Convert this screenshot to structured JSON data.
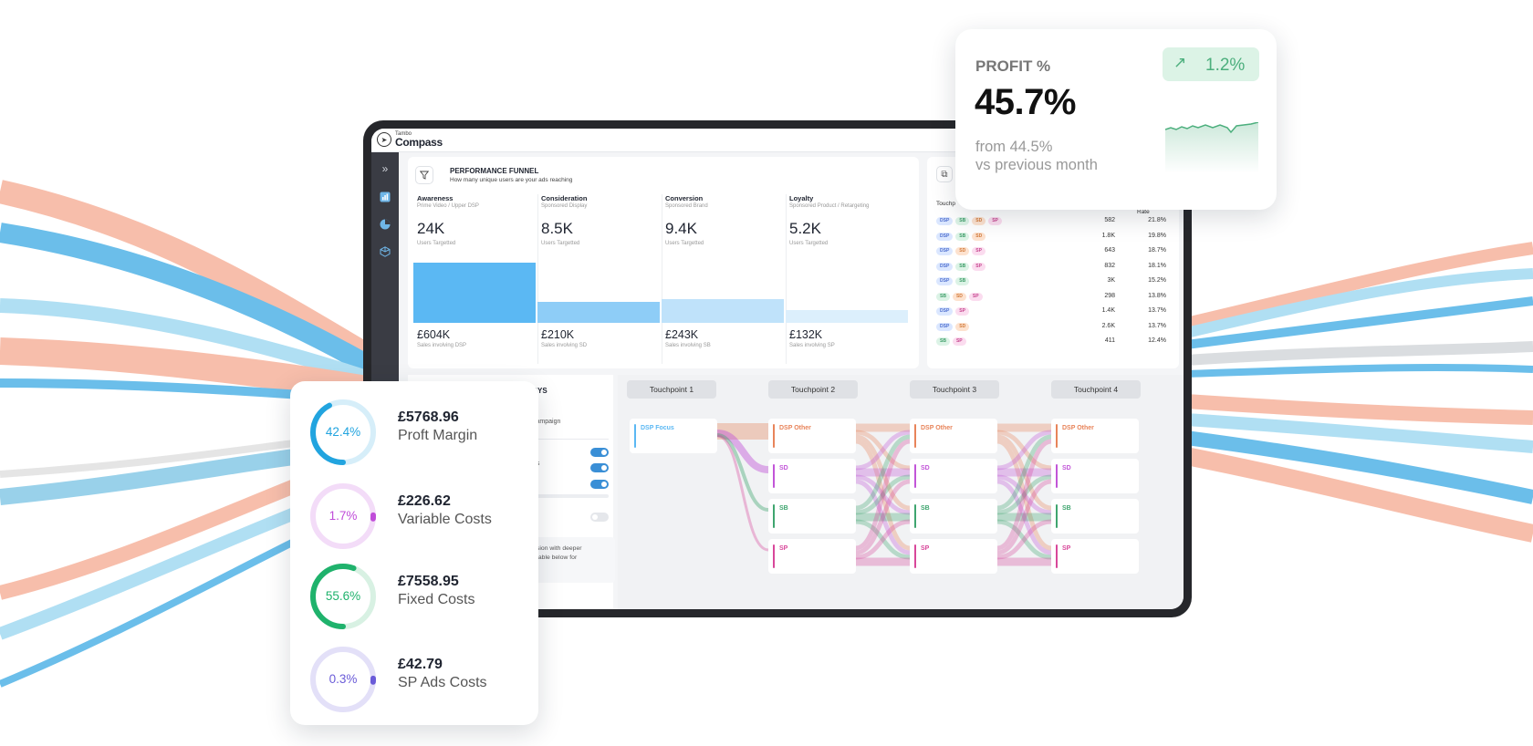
{
  "app": {
    "brand_small": "Tambo",
    "brand_name": "Compass"
  },
  "sidebar": {
    "icons": [
      "double-chevron-right-icon",
      "bar-chart-icon",
      "pie-chart-icon",
      "cube-icon"
    ]
  },
  "funnel": {
    "title": "PERFORMANCE FUNNEL",
    "subtitle": "How many unique users are your ads reaching",
    "stages": [
      {
        "name": "Awareness",
        "sub": "Prime Video / Upper DSP",
        "value": "24K",
        "unit": "Users Targetted",
        "users": 24000,
        "sales": "£604K",
        "sales_label": "Sales involving DSP",
        "color": "#5bb8f3"
      },
      {
        "name": "Consideration",
        "sub": "Sponsored Display",
        "value": "8.5K",
        "unit": "Users Targetted",
        "users": 8500,
        "sales": "£210K",
        "sales_label": "Sales involving SD",
        "color": "#8ecdf7"
      },
      {
        "name": "Conversion",
        "sub": "Sponsored Brand",
        "value": "9.4K",
        "unit": "Users Targetted",
        "users": 9400,
        "sales": "£243K",
        "sales_label": "Sales involving SB",
        "color": "#bfe2fa"
      },
      {
        "name": "Loyalty",
        "sub": "Sponsored Product / Retargeting",
        "value": "5.2K",
        "unit": "Users Targetted",
        "users": 5200,
        "sales": "£132K",
        "sales_label": "Sales involving SP",
        "color": "#dceffc"
      }
    ]
  },
  "touchpoints_table": {
    "col_touch": "Touchp",
    "col_rate": "Rate",
    "rows": [
      {
        "tags": [
          "DSP",
          "SB",
          "SD",
          "SP"
        ],
        "count": "582",
        "rate": "21.8%"
      },
      {
        "tags": [
          "DSP",
          "SB",
          "SD"
        ],
        "count": "1.8K",
        "rate": "19.8%"
      },
      {
        "tags": [
          "DSP",
          "SD",
          "SP"
        ],
        "count": "643",
        "rate": "18.7%"
      },
      {
        "tags": [
          "DSP",
          "SB",
          "SP"
        ],
        "count": "832",
        "rate": "18.1%"
      },
      {
        "tags": [
          "DSP",
          "SB"
        ],
        "count": "3K",
        "rate": "15.2%"
      },
      {
        "tags": [
          "SB",
          "SD",
          "SP"
        ],
        "count": "298",
        "rate": "13.8%"
      },
      {
        "tags": [
          "DSP",
          "SP"
        ],
        "count": "1.4K",
        "rate": "13.7%"
      },
      {
        "tags": [
          "DSP",
          "SD"
        ],
        "count": "2.6K",
        "rate": "13.7%"
      },
      {
        "tags": [
          "SB",
          "SP"
        ],
        "count": "411",
        "rate": "12.4%"
      }
    ]
  },
  "journey_panel": {
    "title_fragment": "AYS",
    "sub_fragment": "campaign",
    "label_fragment": "hs",
    "note_fragment_1": "sion with deeper",
    "note_fragment_2": "table below for"
  },
  "sankey": {
    "headers": [
      "Touchpoint 1",
      "Touchpoint 2",
      "Touchpoint 3",
      "Touchpoint 4"
    ],
    "first_node": {
      "label": "DSP Focus",
      "color": "#5bb8f3"
    },
    "nodes": [
      {
        "label": "DSP Other",
        "color": "#e8845a"
      },
      {
        "label": "SD",
        "color": "#c255d8"
      },
      {
        "label": "SB",
        "color": "#3fa56f"
      },
      {
        "label": "SP",
        "color": "#d8479a"
      }
    ]
  },
  "profit_card": {
    "label": "PROFIT %",
    "value": "45.7%",
    "from": "from 44.5%",
    "vs": "vs previous month",
    "delta": "1.2%",
    "delta_icon": "arrow-up-right-icon",
    "accent": "#4caf7d"
  },
  "cost_card": {
    "items": [
      {
        "pct": "42.4%",
        "fraction": 0.424,
        "amount": "£5768.96",
        "label": "Proft Margin",
        "color": "#22a4df",
        "track": "#d6eef9"
      },
      {
        "pct": "1.7%",
        "fraction": 0.017,
        "amount": "£226.62",
        "label": "Variable Costs",
        "color": "#c04cd9",
        "track": "#f3dcf8"
      },
      {
        "pct": "55.6%",
        "fraction": 0.556,
        "amount": "£7558.95",
        "label": "Fixed Costs",
        "color": "#1fb26c",
        "track": "#d8f1e3"
      },
      {
        "pct": "0.3%",
        "fraction": 0.003,
        "amount": "£42.79",
        "label": "SP Ads Costs",
        "color": "#6a5bd8",
        "track": "#e3e0f8"
      }
    ]
  }
}
